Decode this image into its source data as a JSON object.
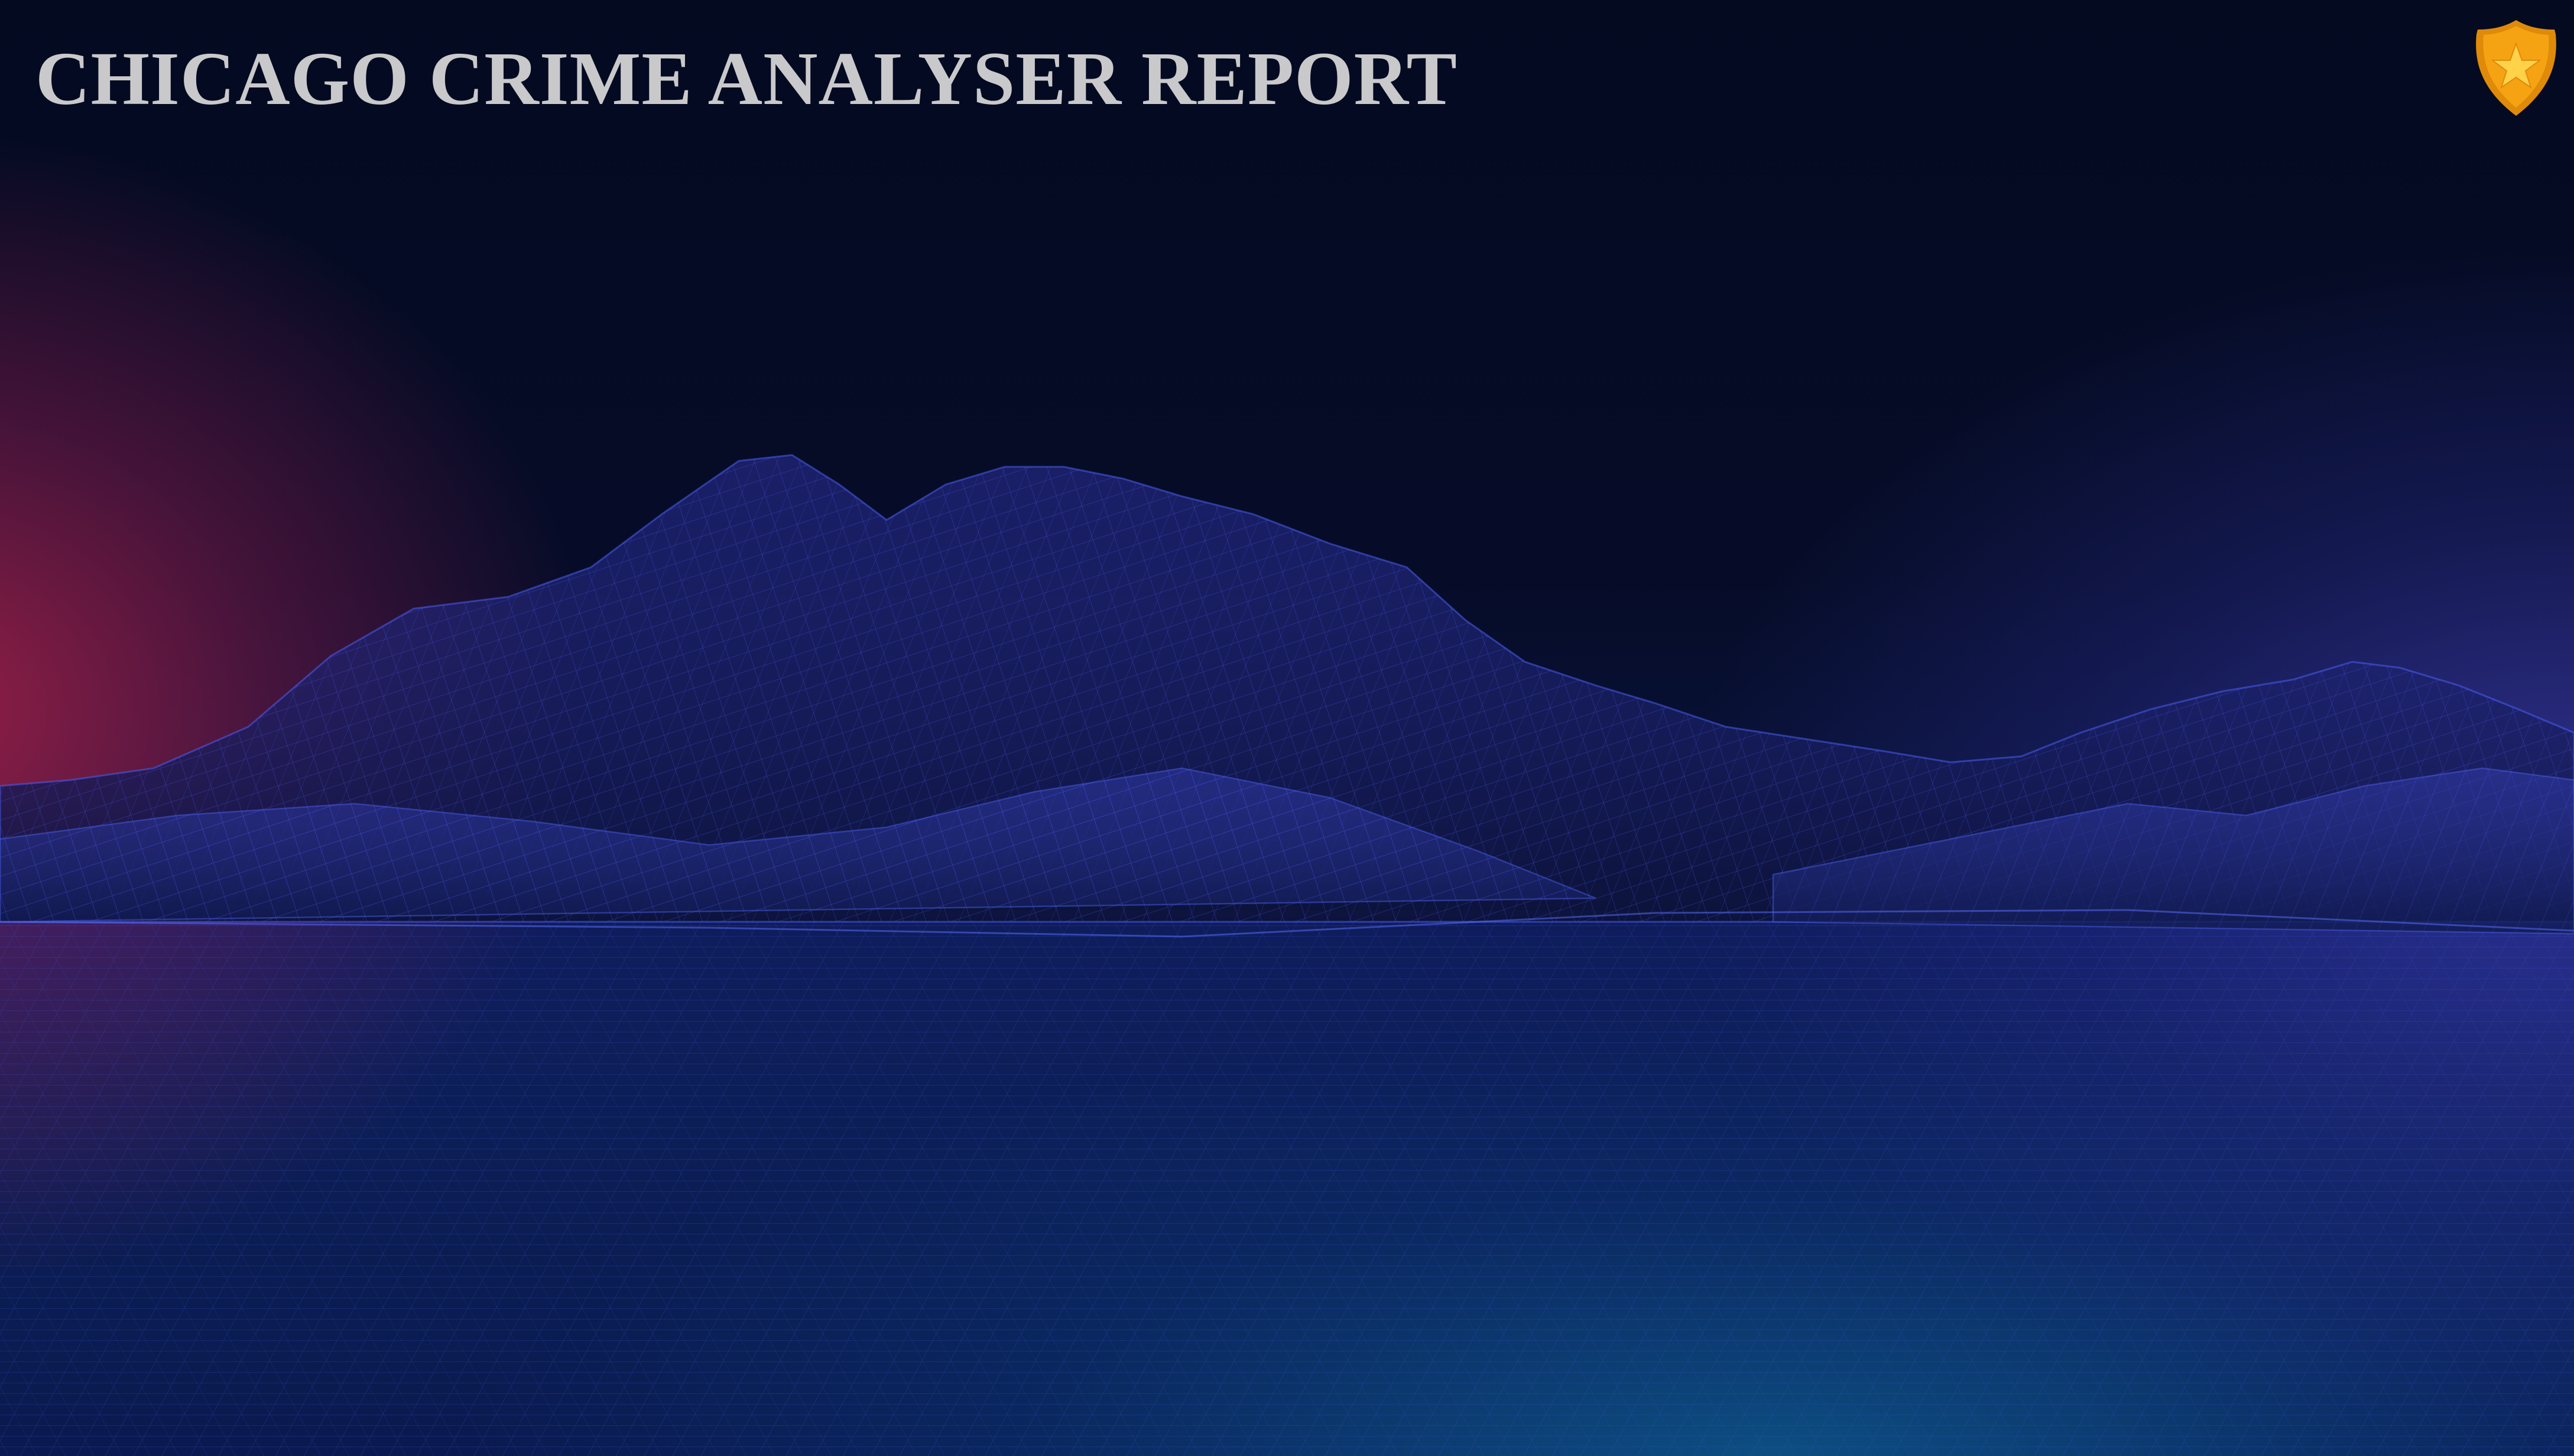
{
  "report": {
    "title": "CHICAGO CRIME ANALYSER REPORT"
  },
  "icons": {
    "logo": "police-badge-icon",
    "background": "wireframe-terrain"
  },
  "colors": {
    "title_text": "#c9c9cb",
    "badge_fill": "#f5a313",
    "badge_star": "#ffd24a",
    "wireframe": "#3a4ee0",
    "glow_left": "#a02048",
    "glow_right": "#3a38a0",
    "background": "#050a22"
  }
}
